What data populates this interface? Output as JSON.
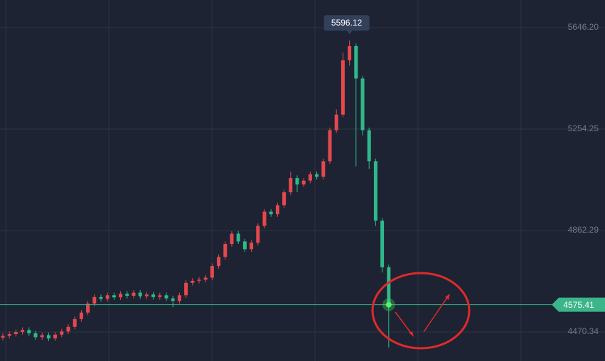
{
  "chart_data": {
    "type": "candlestick",
    "ylim": [
      4357.9,
      5753.1
    ],
    "yticks": [
      {
        "value": 5646.2,
        "label": "5646.20"
      },
      5254.25,
      4862.29,
      4470.34
    ],
    "grid": true,
    "up_color": "#e5484d",
    "down_color": "#2fb98a",
    "open": [
      4448,
      4455,
      4462,
      4470,
      4478,
      4465,
      4450,
      4458,
      4445,
      4460,
      4472,
      4490,
      4520,
      4545,
      4580,
      4605,
      4598,
      4612,
      4604,
      4618,
      4610,
      4622,
      4608,
      4615,
      4605,
      4612,
      4600,
      4590,
      4612,
      4660,
      4668,
      4672,
      4680,
      4725,
      4760,
      4810,
      4850,
      4820,
      4790,
      4815,
      4880,
      4935,
      4925,
      4960,
      5010,
      5065,
      5040,
      5055,
      5080,
      5070,
      5130,
      5250,
      5310,
      5520,
      5575,
      5450,
      5250,
      5130,
      4900,
      4720
    ],
    "high": [
      4465,
      4472,
      4480,
      4488,
      4488,
      4475,
      4468,
      4468,
      4470,
      4482,
      4500,
      4530,
      4555,
      4590,
      4615,
      4615,
      4622,
      4622,
      4628,
      4628,
      4632,
      4632,
      4625,
      4625,
      4622,
      4622,
      4610,
      4622,
      4670,
      4678,
      4682,
      4690,
      4735,
      4770,
      4820,
      4860,
      4860,
      4830,
      4825,
      4890,
      4945,
      4945,
      4970,
      5020,
      5090,
      5075,
      5065,
      5090,
      5090,
      5140,
      5260,
      5330,
      5550,
      5596.12,
      5585,
      5460,
      5260,
      5140,
      4910,
      4730
    ],
    "low": [
      4438,
      4445,
      4452,
      4460,
      4455,
      4440,
      4440,
      4435,
      4435,
      4450,
      4462,
      4480,
      4510,
      4535,
      4570,
      4588,
      4588,
      4594,
      4594,
      4600,
      4600,
      4598,
      4598,
      4595,
      4595,
      4590,
      4565,
      4580,
      4602,
      4650,
      4658,
      4662,
      4670,
      4715,
      4750,
      4800,
      4810,
      4780,
      4780,
      4805,
      4870,
      4915,
      4915,
      4950,
      5000,
      5010,
      5030,
      5045,
      5060,
      5060,
      5120,
      5240,
      5300,
      5500,
      5110,
      5230,
      5100,
      4880,
      4700,
      4410
    ],
    "close": [
      4455,
      4462,
      4470,
      4478,
      4465,
      4450,
      4458,
      4445,
      4460,
      4472,
      4490,
      4520,
      4545,
      4580,
      4605,
      4598,
      4612,
      4604,
      4618,
      4610,
      4622,
      4608,
      4615,
      4605,
      4612,
      4600,
      4590,
      4612,
      4660,
      4668,
      4672,
      4680,
      4725,
      4760,
      4810,
      4850,
      4820,
      4790,
      4815,
      4880,
      4935,
      4925,
      4960,
      5010,
      5065,
      5040,
      5055,
      5080,
      5070,
      5130,
      5250,
      5310,
      5520,
      5575,
      5450,
      5250,
      5130,
      4900,
      4720,
      4575.41
    ]
  }
}
